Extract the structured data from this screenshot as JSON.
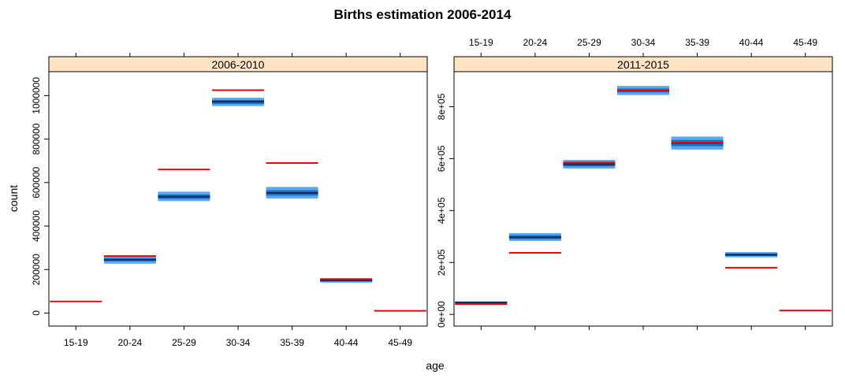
{
  "chart_data": {
    "type": "box",
    "title": "Births estimation 2006-2014",
    "xlabel": "age",
    "ylabel": "count",
    "categories": [
      "15-19",
      "20-24",
      "25-29",
      "30-34",
      "35-39",
      "40-44",
      "45-49"
    ],
    "colors": {
      "observed": "#ee0000",
      "band_outer": "#5aa8f0",
      "band_inner": "#1f6fc0",
      "band_median": "#0a2a60",
      "strip": "#ffe4c4"
    },
    "panels": [
      {
        "strip_label": "2006-2010",
        "ylim": [
          -60000,
          1110000
        ],
        "yticks": [
          0,
          200000,
          400000,
          600000,
          800000,
          1000000
        ],
        "ytick_labels": [
          "0",
          "200000",
          "400000",
          "600000",
          "800000",
          "1000000"
        ],
        "estimates": [
          {
            "lo": 0,
            "lo2": 0,
            "median": 0,
            "hi2": 0,
            "hi": 0
          },
          {
            "lo": 227000,
            "lo2": 238000,
            "median": 245000,
            "hi2": 252000,
            "hi": 265000
          },
          {
            "lo": 515000,
            "lo2": 525000,
            "median": 535000,
            "hi2": 545000,
            "hi": 558000
          },
          {
            "lo": 952000,
            "lo2": 962000,
            "median": 972000,
            "hi2": 980000,
            "hi": 990000
          },
          {
            "lo": 527000,
            "lo2": 540000,
            "median": 552000,
            "hi2": 565000,
            "hi": 580000
          },
          {
            "lo": 140000,
            "lo2": 145000,
            "median": 150000,
            "hi2": 155000,
            "hi": 161000
          },
          {
            "lo": 0,
            "lo2": 0,
            "median": 0,
            "hi2": 0,
            "hi": 0
          }
        ],
        "observed": [
          53000,
          262000,
          660000,
          1025000,
          690000,
          155000,
          10000
        ]
      },
      {
        "strip_label": "2011-2015",
        "ylim": [
          -45000,
          935000
        ],
        "yticks": [
          0,
          200000,
          400000,
          600000,
          800000
        ],
        "ytick_labels": [
          "0e+00",
          "2e+05",
          "4e+05",
          "6e+05",
          "8e+05"
        ],
        "estimates": [
          {
            "lo": 42000,
            "lo2": 44000,
            "median": 46000,
            "hi2": 48000,
            "hi": 50000
          },
          {
            "lo": 283000,
            "lo2": 290000,
            "median": 297000,
            "hi2": 305000,
            "hi": 313000
          },
          {
            "lo": 562000,
            "lo2": 570000,
            "median": 578000,
            "hi2": 586000,
            "hi": 595000
          },
          {
            "lo": 845000,
            "lo2": 855000,
            "median": 862000,
            "hi2": 870000,
            "hi": 880000
          },
          {
            "lo": 635000,
            "lo2": 648000,
            "median": 660000,
            "hi2": 672000,
            "hi": 685000
          },
          {
            "lo": 220000,
            "lo2": 225000,
            "median": 230000,
            "hi2": 235000,
            "hi": 240000
          },
          {
            "lo": 0,
            "lo2": 0,
            "median": 0,
            "hi2": 0,
            "hi": 0
          }
        ],
        "observed": [
          40000,
          237000,
          585000,
          862000,
          662000,
          180000,
          15000
        ]
      }
    ]
  }
}
